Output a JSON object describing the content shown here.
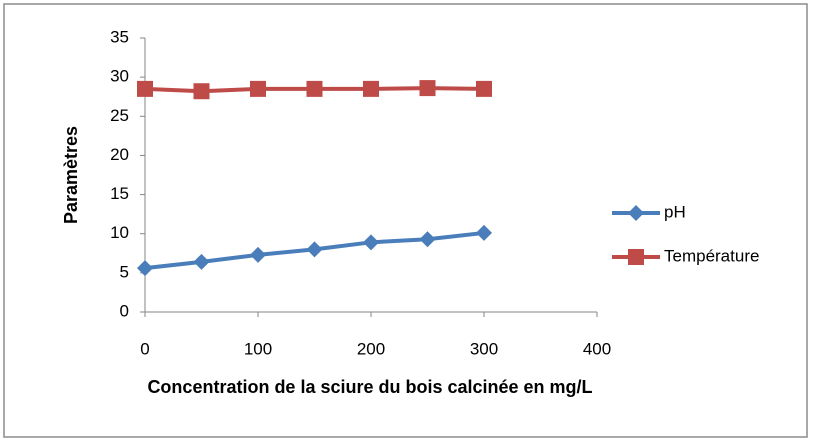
{
  "chart_data": {
    "type": "line",
    "xlabel": "Concentration de la sciure du bois calcinée en mg/L",
    "ylabel": "Paramètres",
    "x": [
      0,
      50,
      100,
      150,
      200,
      250,
      300
    ],
    "series": [
      {
        "name": "pH",
        "color": "#4a7ebb",
        "marker": "diamond",
        "values": [
          5.6,
          6.4,
          7.3,
          8.0,
          8.9,
          9.3,
          10.1
        ]
      },
      {
        "name": "Température",
        "color": "#be4b48",
        "marker": "square",
        "values": [
          28.5,
          28.2,
          28.5,
          28.5,
          28.5,
          28.6,
          28.5
        ]
      }
    ],
    "xlim": [
      0,
      400
    ],
    "xticks": [
      0,
      100,
      200,
      300,
      400
    ],
    "ylim": [
      0,
      35
    ],
    "yticks": [
      0,
      5,
      10,
      15,
      20,
      25,
      30,
      35
    ],
    "grid": false,
    "legend": "right"
  }
}
